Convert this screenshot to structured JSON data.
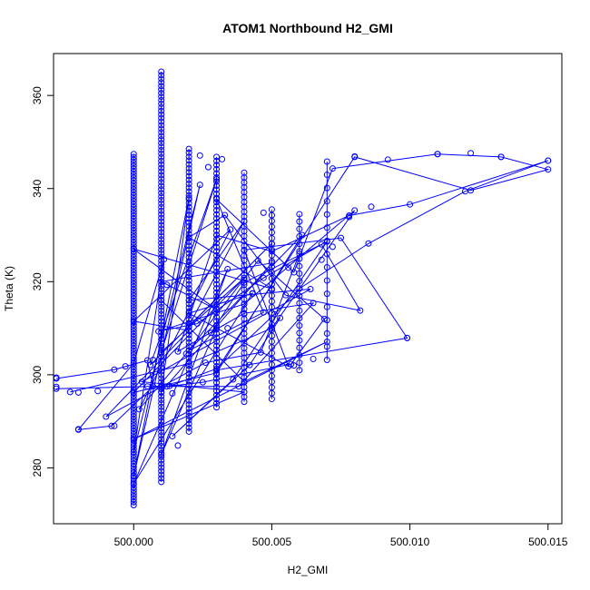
{
  "chart_data": {
    "type": "scatter",
    "title": "ATOM1 Northbound H2_GMI",
    "xlabel": "H2_GMI",
    "ylabel": "Theta (K)",
    "xlim": [
      499.9971,
      500.0155
    ],
    "ylim": [
      268.0,
      369.0
    ],
    "x_ticks": [
      500.0,
      500.005,
      500.01,
      500.015
    ],
    "x_tick_labels": [
      "500.000",
      "500.005",
      "500.010",
      "500.015"
    ],
    "y_ticks": [
      280,
      300,
      320,
      340,
      360
    ],
    "y_tick_labels": [
      "280",
      "300",
      "320",
      "340",
      "360"
    ],
    "grid": false,
    "legend": "none",
    "colors": {
      "series": "#0000ff",
      "frame": "#000000"
    },
    "series": [
      {
        "style": "line+points",
        "x": [
          499.9972,
          499.9993,
          500.0005,
          500.0007,
          499.9992,
          499.998,
          500.0,
          500.0011,
          500.0,
          500.0024,
          500.0,
          500.002,
          500.001,
          500.003,
          500.001,
          500.0034,
          500.0,
          500.0043,
          500.002,
          500.0056,
          500.004,
          500.0075,
          500.0099,
          500.003,
          500.008,
          500.0122,
          500.015,
          500.0133,
          500.011,
          500.0072,
          500.0058,
          500.003,
          500.0047,
          500.002,
          500.0061,
          500.003,
          500.0,
          500.004,
          500.001,
          500.003,
          500.0006,
          500.005,
          500.002,
          500.004,
          500.002,
          500.0064,
          500.0003,
          500.004,
          500.0,
          500.007,
          500.004,
          500.001
        ],
        "y": [
          299.2,
          301.1,
          303.1,
          297.5,
          289.0,
          288.2,
          302.5,
          324.8,
          283.4,
          340.8,
          278.2,
          338.0,
          296.3,
          310.1,
          282.8,
          322.7,
          276.6,
          317.5,
          313.2,
          301.8,
          326.8,
          329.4,
          307.9,
          301.0,
          346.8,
          339.6,
          344.1,
          346.8,
          347.4,
          344.3,
          322.0,
          337.7,
          313.4,
          305.2,
          330.0,
          300.4,
          296.2,
          320.8,
          304.9,
          342.0,
          302.1,
          328.2,
          310.5,
          333.0,
          316.0,
          318.4,
          298.5,
          296.3,
          286.2,
          307.1,
          298.5,
          316.0
        ]
      },
      {
        "style": "line+points",
        "x": [
          499.9972,
          500.0013,
          500.003,
          500.0051,
          500.006,
          500.0085,
          500.012,
          500.015,
          500.01,
          500.0078,
          500.005,
          500.003,
          500.0016,
          500.004,
          500.0065,
          500.0038,
          500.0012,
          500.0025,
          500.0057,
          500.0069,
          500.0045,
          500.0019,
          500.0002,
          500.0035,
          500.0,
          500.002,
          499.999,
          500.001,
          500.0026,
          500.0046,
          500.006
        ],
        "y": [
          297.0,
          297.6,
          301.3,
          313.0,
          318.5,
          328.2,
          339.4,
          346.0,
          336.6,
          334.2,
          326.5,
          330.0,
          305.0,
          313.2,
          315.4,
          297.5,
          297.5,
          298.4,
          302.3,
          312.0,
          324.5,
          304.5,
          292.6,
          331.2,
          311.5,
          309.5,
          291.0,
          297.4,
          302.6,
          304.8,
          326.0
        ]
      },
      {
        "style": "line+points",
        "x": [
          499.9977,
          500.002,
          500.005,
          500.008,
          500.004,
          500.0009,
          500.0023,
          500.0047,
          500.0068,
          500.0082,
          500.0055,
          500.0033,
          500.002,
          500.005,
          500.0,
          500.003,
          500.001,
          500.005,
          500.0028,
          500.004,
          500.007,
          500.0036,
          500.0014,
          500.0042,
          500.0053
        ],
        "y": [
          296.3,
          302.4,
          310.0,
          335.3,
          315.2,
          309.3,
          311.0,
          320.8,
          328.0,
          313.8,
          317.1,
          334.3,
          329.5,
          318.5,
          327.0,
          314.0,
          320.0,
          324.0,
          309.0,
          319.8,
          328.6,
          299.0,
          286.8,
          302.1,
          312.2
        ]
      },
      {
        "style": "vertical-stacks",
        "x": [
          500.0,
          500.001,
          500.002,
          500.003,
          500.004,
          500.005,
          500.006,
          500.007
        ],
        "ymin": [
          272.0,
          277.0,
          287.8,
          293.0,
          294.2,
          294.8,
          301.0,
          303.2
        ],
        "ymax": [
          347.4,
          365.1,
          348.5,
          346.8,
          343.4,
          335.5,
          334.5,
          345.8
        ],
        "n": [
          120,
          116,
          74,
          62,
          48,
          34,
          22,
          16
        ]
      },
      {
        "style": "points",
        "x": [
          499.9972,
          499.9972,
          499.998,
          499.998,
          499.9987,
          499.9993,
          499.9997,
          500.0005,
          500.0007,
          500.0012,
          500.0014,
          500.0016,
          500.0024,
          500.0027,
          500.0032,
          500.0034,
          500.0043,
          500.0047,
          500.0056,
          500.0058,
          500.0065,
          500.0068,
          500.0072,
          500.0078,
          500.008,
          500.0086,
          500.0092,
          500.0099,
          500.011,
          500.0122,
          500.0133,
          500.015
        ],
        "y": [
          299.4,
          297.4,
          288.3,
          296.2,
          296.5,
          289.0,
          301.8,
          297.5,
          303.2,
          319.3,
          296.0,
          284.8,
          347.1,
          344.6,
          346.3,
          310.0,
          317.4,
          334.8,
          323.0,
          302.0,
          303.4,
          324.7,
          327.5,
          333.9,
          346.9,
          336.1,
          346.2,
          307.9,
          347.4,
          347.6,
          346.8,
          346.0
        ]
      }
    ]
  }
}
